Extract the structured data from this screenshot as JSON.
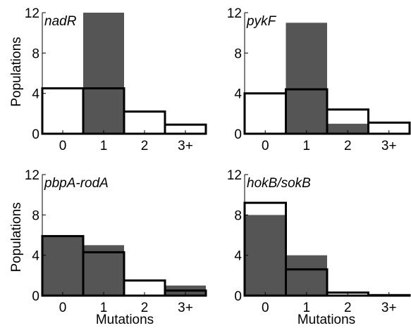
{
  "figure": {
    "y_axis_label": "Populations",
    "x_axis_label": "Mutations",
    "colors": {
      "observed_fill": "#555555",
      "expected_outline": "#000000",
      "expected_fill": "#ffffff"
    }
  },
  "chart_data": [
    {
      "type": "bar",
      "title": "nadR",
      "categories": [
        "0",
        "1",
        "2",
        "3+"
      ],
      "ylim": [
        0,
        12
      ],
      "yticks": [
        "0",
        "4",
        "8",
        "12"
      ],
      "ylabel": "Populations",
      "xlabel": "",
      "series": [
        {
          "kind": "filled",
          "values": [
            0,
            12,
            0,
            0
          ]
        },
        {
          "kind": "outline",
          "values": [
            4.5,
            4.5,
            2.2,
            0.9
          ]
        }
      ]
    },
    {
      "type": "bar",
      "title": "pykF",
      "categories": [
        "0",
        "1",
        "2",
        "3+"
      ],
      "ylim": [
        0,
        12
      ],
      "yticks": [
        "0",
        "4",
        "8",
        "12"
      ],
      "ylabel": "",
      "xlabel": "",
      "series": [
        {
          "kind": "filled",
          "values": [
            0,
            11,
            1,
            0
          ]
        },
        {
          "kind": "outline",
          "values": [
            4.0,
            4.4,
            2.4,
            1.1
          ]
        }
      ]
    },
    {
      "type": "bar",
      "title": "pbpA-rodA",
      "categories": [
        "0",
        "1",
        "2",
        "3+"
      ],
      "ylim": [
        0,
        12
      ],
      "yticks": [
        "0",
        "4",
        "8",
        "12"
      ],
      "ylabel": "Populations",
      "xlabel": "Mutations",
      "series": [
        {
          "kind": "filled",
          "values": [
            6,
            5,
            0,
            1
          ]
        },
        {
          "kind": "outline",
          "values": [
            5.9,
            4.3,
            1.5,
            0.5
          ]
        }
      ]
    },
    {
      "type": "bar",
      "title": "hokB/sokB",
      "categories": [
        "0",
        "1",
        "2",
        "3+"
      ],
      "ylim": [
        0,
        12
      ],
      "yticks": [
        "0",
        "4",
        "8",
        "12"
      ],
      "ylabel": "",
      "xlabel": "Mutations",
      "series": [
        {
          "kind": "filled",
          "values": [
            8,
            4,
            0,
            0
          ]
        },
        {
          "kind": "outline",
          "values": [
            9.2,
            2.6,
            0.3,
            0.05
          ]
        }
      ]
    }
  ]
}
